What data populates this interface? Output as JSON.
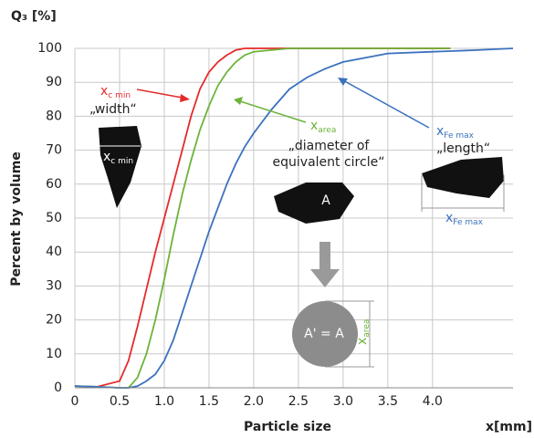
{
  "chart_data": {
    "type": "line",
    "y_title": "Q₃ [%]",
    "y_label": "Percent by volume",
    "x_label": "Particle size",
    "x_unit": "x[mm]",
    "x": [
      0,
      0.25,
      0.5,
      0.6,
      0.7,
      0.8,
      0.9,
      1.0,
      1.1,
      1.2,
      1.3,
      1.4,
      1.5,
      1.6,
      1.7,
      1.8,
      1.9,
      2.0,
      2.2,
      2.4,
      2.6,
      2.8,
      3.0,
      3.5,
      4.0,
      4.2,
      4.5,
      4.9
    ],
    "series": [
      {
        "color": "#e52a2a",
        "values": [
          0.5,
          0.3,
          2,
          8,
          18,
          29,
          40,
          50,
          60,
          70,
          80,
          88,
          93,
          96,
          98,
          99.5,
          100,
          100,
          100,
          100,
          100,
          100,
          100,
          100,
          100,
          100,
          null,
          null
        ]
      },
      {
        "color": "#6cb33a",
        "values": [
          0.5,
          0.3,
          0,
          0,
          3,
          10,
          20,
          32,
          45,
          57,
          67,
          76,
          83,
          89,
          93,
          96,
          98,
          99,
          99.5,
          100,
          100,
          100,
          100,
          100,
          100,
          100,
          null,
          null
        ]
      },
      {
        "color": "#3b72be",
        "values": [
          0.5,
          0.3,
          0,
          0,
          0.5,
          2,
          4,
          8,
          14,
          22,
          30,
          38,
          46,
          53,
          60,
          66,
          71,
          75,
          82,
          88,
          91.5,
          94,
          96,
          98.5,
          99,
          99.2,
          99.5,
          100
        ]
      }
    ],
    "xlim": [
      0,
      4.9
    ],
    "ylim": [
      0,
      100
    ],
    "xticks": [
      0,
      0.5,
      {
        "value": 1,
        "label": "1.0"
      },
      1.5,
      {
        "value": 2,
        "label": "2.0"
      },
      2.5,
      {
        "value": 3,
        "label": "3.0"
      },
      3.5,
      {
        "value": 4,
        "label": "4.0"
      }
    ],
    "yticks": [
      0,
      10,
      20,
      30,
      40,
      50,
      60,
      70,
      80,
      90,
      100
    ],
    "grid": true,
    "annotations": {
      "cmin": {
        "text": "x",
        "sub": "c min"
      },
      "width": "„width“",
      "cmin_shape": {
        "text": "x",
        "sub": "c min"
      },
      "area": {
        "text": "x",
        "sub": "area"
      },
      "diameter": [
        "„diameter of",
        "equivalent circle“"
      ],
      "a": "A",
      "a_eq": "A' = A",
      "area_circle": {
        "text": "x",
        "sub": "area"
      },
      "femax": {
        "text": "x",
        "sub": "Fe max"
      },
      "length": "„length“",
      "femax_shape": {
        "text": "x",
        "sub": "Fe max"
      }
    }
  }
}
